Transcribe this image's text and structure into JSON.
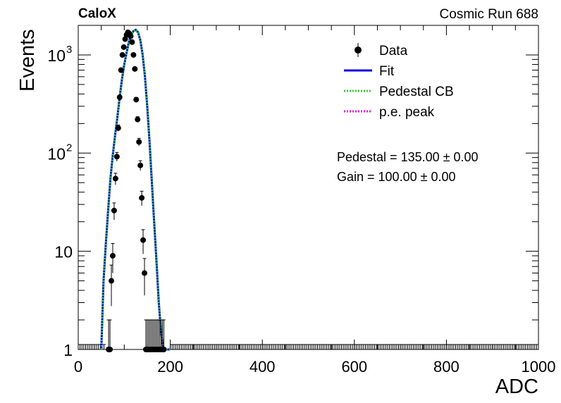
{
  "header": {
    "experiment": "CaloX",
    "run_label": "Cosmic Run 688"
  },
  "chart_data": {
    "type": "scatter",
    "xlabel": "ADC",
    "ylabel": "Events",
    "xlim": [
      0,
      1000
    ],
    "ylim": [
      1,
      2000
    ],
    "y_log": true,
    "grid": false,
    "legend_position": "top-right",
    "x_ticks": [
      {
        "value": 0,
        "label": "0"
      },
      {
        "value": 200,
        "label": "200"
      },
      {
        "value": 400,
        "label": "400"
      },
      {
        "value": 600,
        "label": "600"
      },
      {
        "value": 800,
        "label": "800"
      },
      {
        "value": 1000,
        "label": "1000"
      }
    ],
    "y_ticks": [
      {
        "value": 1,
        "label": "1",
        "sup": ""
      },
      {
        "value": 10,
        "label": "10",
        "sup": ""
      },
      {
        "value": 100,
        "label": "10",
        "sup": "2"
      },
      {
        "value": 1000,
        "label": "10",
        "sup": "3"
      }
    ],
    "legend": [
      {
        "label": "Data",
        "style": "marker",
        "color": "#000000"
      },
      {
        "label": "Fit",
        "style": "solid",
        "color": "#0000dd"
      },
      {
        "label": "Pedestal CB",
        "style": "dotted",
        "color": "#33cc33"
      },
      {
        "label": "p.e. peak",
        "style": "dotted",
        "color": "#ee00ee"
      }
    ],
    "annotations": [
      {
        "text": "Pedestal = 135.00 ± 0.00"
      },
      {
        "text": "Gain = 100.00 ± 0.00"
      }
    ],
    "data_points": {
      "x": [
        66,
        69,
        72,
        75,
        78,
        81,
        84,
        87,
        90,
        93,
        96,
        99,
        102,
        105,
        108,
        111,
        114,
        117,
        120,
        123,
        126,
        129,
        132,
        135,
        138,
        141,
        144,
        147,
        150,
        153,
        156,
        159,
        162,
        165,
        168,
        171,
        174,
        177,
        180,
        183,
        186
      ],
      "y": [
        1,
        1,
        5,
        9,
        26,
        55,
        92,
        180,
        370,
        700,
        1000,
        1200,
        1450,
        1600,
        1700,
        1650,
        1550,
        1350,
        1000,
        720,
        350,
        220,
        130,
        75,
        35,
        13,
        6,
        1,
        1,
        1,
        1,
        1,
        1,
        1,
        1,
        1,
        1,
        1,
        1,
        1,
        1
      ]
    },
    "series": [
      {
        "name": "Fit",
        "x": [
          50,
          55,
          60,
          65,
          70,
          75,
          80,
          85,
          90,
          95,
          100,
          105,
          110,
          115,
          120,
          125,
          130,
          135,
          140,
          145,
          150,
          155,
          160,
          165,
          170,
          175,
          180,
          185,
          190,
          195,
          200
        ],
        "y": [
          1,
          5,
          12,
          26,
          55,
          95,
          150,
          230,
          370,
          560,
          800,
          1050,
          1350,
          1600,
          1750,
          1800,
          1700,
          1400,
          1000,
          600,
          300,
          130,
          50,
          20,
          8,
          3,
          1.5,
          1,
          1,
          1,
          1
        ]
      },
      {
        "name": "Pedestal CB",
        "x": [
          50,
          55,
          60,
          65,
          70,
          75,
          80,
          85,
          90,
          95,
          100,
          105,
          110,
          115,
          120,
          125,
          130,
          135,
          140,
          145,
          150,
          155,
          160,
          165,
          170,
          175,
          180,
          185,
          190,
          195,
          200
        ],
        "y": [
          1,
          5,
          12,
          26,
          55,
          95,
          150,
          230,
          370,
          560,
          800,
          1050,
          1350,
          1600,
          1750,
          1800,
          1700,
          1400,
          1000,
          600,
          300,
          130,
          50,
          20,
          8,
          3,
          1.5,
          1,
          1,
          1,
          1
        ]
      }
    ]
  }
}
